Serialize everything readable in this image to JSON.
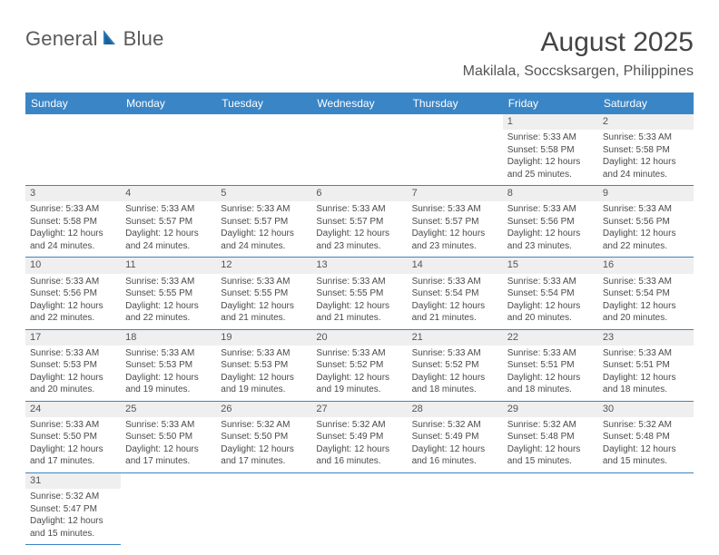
{
  "logo": {
    "word1": "General",
    "word2": "Blue"
  },
  "title": "August 2025",
  "subtitle": "Makilala, Soccsksargen, Philippines",
  "colors": {
    "header_bg": "#3a85c6",
    "header_fg": "#ffffff",
    "row_border": "#3a85c6",
    "daynum_bg": "#efefef",
    "text": "#4a4a4a"
  },
  "dow": [
    "Sunday",
    "Monday",
    "Tuesday",
    "Wednesday",
    "Thursday",
    "Friday",
    "Saturday"
  ],
  "weeks": [
    [
      null,
      null,
      null,
      null,
      null,
      {
        "n": "1",
        "sr": "5:33 AM",
        "ss": "5:58 PM",
        "dl": "12 hours and 25 minutes."
      },
      {
        "n": "2",
        "sr": "5:33 AM",
        "ss": "5:58 PM",
        "dl": "12 hours and 24 minutes."
      }
    ],
    [
      {
        "n": "3",
        "sr": "5:33 AM",
        "ss": "5:58 PM",
        "dl": "12 hours and 24 minutes."
      },
      {
        "n": "4",
        "sr": "5:33 AM",
        "ss": "5:57 PM",
        "dl": "12 hours and 24 minutes."
      },
      {
        "n": "5",
        "sr": "5:33 AM",
        "ss": "5:57 PM",
        "dl": "12 hours and 24 minutes."
      },
      {
        "n": "6",
        "sr": "5:33 AM",
        "ss": "5:57 PM",
        "dl": "12 hours and 23 minutes."
      },
      {
        "n": "7",
        "sr": "5:33 AM",
        "ss": "5:57 PM",
        "dl": "12 hours and 23 minutes."
      },
      {
        "n": "8",
        "sr": "5:33 AM",
        "ss": "5:56 PM",
        "dl": "12 hours and 23 minutes."
      },
      {
        "n": "9",
        "sr": "5:33 AM",
        "ss": "5:56 PM",
        "dl": "12 hours and 22 minutes."
      }
    ],
    [
      {
        "n": "10",
        "sr": "5:33 AM",
        "ss": "5:56 PM",
        "dl": "12 hours and 22 minutes."
      },
      {
        "n": "11",
        "sr": "5:33 AM",
        "ss": "5:55 PM",
        "dl": "12 hours and 22 minutes."
      },
      {
        "n": "12",
        "sr": "5:33 AM",
        "ss": "5:55 PM",
        "dl": "12 hours and 21 minutes."
      },
      {
        "n": "13",
        "sr": "5:33 AM",
        "ss": "5:55 PM",
        "dl": "12 hours and 21 minutes."
      },
      {
        "n": "14",
        "sr": "5:33 AM",
        "ss": "5:54 PM",
        "dl": "12 hours and 21 minutes."
      },
      {
        "n": "15",
        "sr": "5:33 AM",
        "ss": "5:54 PM",
        "dl": "12 hours and 20 minutes."
      },
      {
        "n": "16",
        "sr": "5:33 AM",
        "ss": "5:54 PM",
        "dl": "12 hours and 20 minutes."
      }
    ],
    [
      {
        "n": "17",
        "sr": "5:33 AM",
        "ss": "5:53 PM",
        "dl": "12 hours and 20 minutes."
      },
      {
        "n": "18",
        "sr": "5:33 AM",
        "ss": "5:53 PM",
        "dl": "12 hours and 19 minutes."
      },
      {
        "n": "19",
        "sr": "5:33 AM",
        "ss": "5:53 PM",
        "dl": "12 hours and 19 minutes."
      },
      {
        "n": "20",
        "sr": "5:33 AM",
        "ss": "5:52 PM",
        "dl": "12 hours and 19 minutes."
      },
      {
        "n": "21",
        "sr": "5:33 AM",
        "ss": "5:52 PM",
        "dl": "12 hours and 18 minutes."
      },
      {
        "n": "22",
        "sr": "5:33 AM",
        "ss": "5:51 PM",
        "dl": "12 hours and 18 minutes."
      },
      {
        "n": "23",
        "sr": "5:33 AM",
        "ss": "5:51 PM",
        "dl": "12 hours and 18 minutes."
      }
    ],
    [
      {
        "n": "24",
        "sr": "5:33 AM",
        "ss": "5:50 PM",
        "dl": "12 hours and 17 minutes."
      },
      {
        "n": "25",
        "sr": "5:33 AM",
        "ss": "5:50 PM",
        "dl": "12 hours and 17 minutes."
      },
      {
        "n": "26",
        "sr": "5:32 AM",
        "ss": "5:50 PM",
        "dl": "12 hours and 17 minutes."
      },
      {
        "n": "27",
        "sr": "5:32 AM",
        "ss": "5:49 PM",
        "dl": "12 hours and 16 minutes."
      },
      {
        "n": "28",
        "sr": "5:32 AM",
        "ss": "5:49 PM",
        "dl": "12 hours and 16 minutes."
      },
      {
        "n": "29",
        "sr": "5:32 AM",
        "ss": "5:48 PM",
        "dl": "12 hours and 15 minutes."
      },
      {
        "n": "30",
        "sr": "5:32 AM",
        "ss": "5:48 PM",
        "dl": "12 hours and 15 minutes."
      }
    ],
    [
      {
        "n": "31",
        "sr": "5:32 AM",
        "ss": "5:47 PM",
        "dl": "12 hours and 15 minutes."
      },
      null,
      null,
      null,
      null,
      null,
      null
    ]
  ],
  "labels": {
    "sunrise": "Sunrise: ",
    "sunset": "Sunset: ",
    "daylight": "Daylight: "
  }
}
